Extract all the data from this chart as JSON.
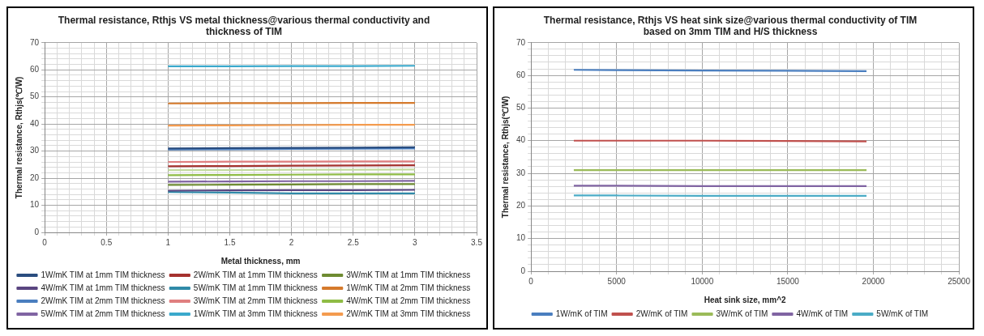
{
  "chart_data": [
    {
      "type": "line",
      "title": "Thermal resistance, Rthjs VS metal thickness@various thermal conductivity and thickness of TIM",
      "xlabel": "Metal thickness, mm",
      "ylabel": "Thermal resistance, Rthjs(℃/W)",
      "x": [
        1,
        1.5,
        2,
        2.5,
        3
      ],
      "series": [
        {
          "name": "1W/mK TIM at 1mm TIM thickness",
          "color": "#2a4d7f",
          "values": [
            31.0,
            31.1,
            31.2,
            31.3,
            31.4
          ]
        },
        {
          "name": "2W/mK TIM at 1mm TIM thickness",
          "color": "#a5322f",
          "values": [
            24.4,
            24.5,
            24.6,
            24.7,
            24.8
          ]
        },
        {
          "name": "3W/mK TIM at 1mm TIM thickness",
          "color": "#6e8b32",
          "values": [
            17.5,
            17.6,
            17.7,
            17.8,
            17.8
          ]
        },
        {
          "name": "4W/mK TIM at 1mm TIM thickness",
          "color": "#5a4580",
          "values": [
            15.4,
            15.5,
            15.6,
            15.6,
            15.7
          ]
        },
        {
          "name": "5W/mK TIM at 1mm TIM thickness",
          "color": "#2f8aa8",
          "values": [
            14.9,
            14.7,
            14.4,
            14.4,
            14.4
          ]
        },
        {
          "name": "1W/mK TIM at 2mm TIM thickness",
          "color": "#d57a2c",
          "values": [
            47.6,
            47.7,
            47.7,
            47.8,
            47.8
          ]
        },
        {
          "name": "2W/mK TIM at 2mm TIM thickness",
          "color": "#4a7ebf",
          "values": [
            30.6,
            30.7,
            30.8,
            30.9,
            31.0
          ]
        },
        {
          "name": "3W/mK TIM at 2mm TIM thickness",
          "color": "#e07f80",
          "values": [
            26.0,
            26.1,
            26.1,
            26.2,
            26.2
          ]
        },
        {
          "name": "4W/mK TIM at 2mm TIM thickness",
          "color": "#8fbc45",
          "values": [
            21.1,
            21.2,
            21.3,
            21.4,
            21.4
          ]
        },
        {
          "name": "5W/mK TIM at 2mm TIM thickness",
          "color": "#8064a2",
          "values": [
            18.7,
            18.8,
            18.9,
            18.9,
            19.0
          ]
        },
        {
          "name": "1W/mK TIM at 3mm TIM thickness",
          "color": "#3aa9cc",
          "values": [
            61.3,
            61.3,
            61.4,
            61.4,
            61.5
          ]
        },
        {
          "name": "2W/mK TIM at 3mm TIM thickness",
          "color": "#f49b4e",
          "values": [
            39.4,
            39.5,
            39.6,
            39.7,
            39.7
          ]
        },
        {
          "color": "#c4dba0",
          "values": [
            23.0,
            23.0,
            23.1,
            23.1,
            23.2
          ]
        }
      ],
      "xlim": [
        0,
        3.5
      ],
      "ylim": [
        0,
        70
      ],
      "xticks": [
        0,
        {
          "value": 0.1,
          "label": null
        },
        {
          "value": 0.2,
          "label": null
        },
        {
          "value": 0.3,
          "label": null
        },
        {
          "value": 0.4,
          "label": null
        },
        0.5,
        {
          "value": 0.6,
          "label": null
        },
        {
          "value": 0.7,
          "label": null
        },
        {
          "value": 0.8,
          "label": null
        },
        {
          "value": 0.9,
          "label": null
        },
        1,
        {
          "value": 1.1,
          "label": null
        },
        {
          "value": 1.2,
          "label": null
        },
        {
          "value": 1.3,
          "label": null
        },
        {
          "value": 1.4,
          "label": null
        },
        1.5,
        {
          "value": 1.6,
          "label": null
        },
        {
          "value": 1.7,
          "label": null
        },
        {
          "value": 1.8,
          "label": null
        },
        {
          "value": 1.9,
          "label": null
        },
        2,
        {
          "value": 2.1,
          "label": null
        },
        {
          "value": 2.2,
          "label": null
        },
        {
          "value": 2.3,
          "label": null
        },
        {
          "value": 2.4,
          "label": null
        },
        2.5,
        {
          "value": 2.6,
          "label": null
        },
        {
          "value": 2.7,
          "label": null
        },
        {
          "value": 2.8,
          "label": null
        },
        {
          "value": 2.9,
          "label": null
        },
        3,
        {
          "value": 3.1,
          "label": null
        },
        {
          "value": 3.2,
          "label": null
        },
        {
          "value": 3.3,
          "label": null
        },
        {
          "value": 3.4,
          "label": null
        },
        3.5
      ],
      "yticks": [
        0,
        {
          "value": 2,
          "label": null
        },
        {
          "value": 4,
          "label": null
        },
        {
          "value": 6,
          "label": null
        },
        {
          "value": 8,
          "label": null
        },
        10,
        {
          "value": 12,
          "label": null
        },
        {
          "value": 14,
          "label": null
        },
        {
          "value": 16,
          "label": null
        },
        {
          "value": 18,
          "label": null
        },
        20,
        {
          "value": 22,
          "label": null
        },
        {
          "value": 24,
          "label": null
        },
        {
          "value": 26,
          "label": null
        },
        {
          "value": 28,
          "label": null
        },
        30,
        {
          "value": 32,
          "label": null
        },
        {
          "value": 34,
          "label": null
        },
        {
          "value": 36,
          "label": null
        },
        {
          "value": 38,
          "label": null
        },
        40,
        {
          "value": 42,
          "label": null
        },
        {
          "value": 44,
          "label": null
        },
        {
          "value": 46,
          "label": null
        },
        {
          "value": 48,
          "label": null
        },
        50,
        {
          "value": 52,
          "label": null
        },
        {
          "value": 54,
          "label": null
        },
        {
          "value": 56,
          "label": null
        },
        {
          "value": 58,
          "label": null
        },
        60,
        {
          "value": 62,
          "label": null
        },
        {
          "value": 64,
          "label": null
        },
        {
          "value": 66,
          "label": null
        },
        {
          "value": 68,
          "label": null
        },
        70
      ],
      "grid": true,
      "legend": "bottom",
      "marker": "none",
      "line_style": "solid"
    },
    {
      "type": "line",
      "title": "Thermal resistance, Rthjs VS heat sink size@various thermal conductivity of TIM",
      "subtitle": "based on 3mm TIM and H/S thickness",
      "xlabel": "Heat sink size, mm^2",
      "ylabel": "Thermal resistance, Rthjs(℃/W)",
      "x": [
        2500,
        5000,
        10000,
        15000,
        19600
      ],
      "series": [
        {
          "name": "1W/mK of TIM",
          "color": "#4a7ebf",
          "values": [
            61.7,
            61.6,
            61.5,
            61.4,
            61.3
          ]
        },
        {
          "name": "2W/mK of TIM",
          "color": "#c0504d",
          "values": [
            40.0,
            40.0,
            40.0,
            39.9,
            39.8
          ]
        },
        {
          "name": "3W/mK of TIM",
          "color": "#9bbb59",
          "values": [
            31.0,
            31.0,
            31.0,
            31.0,
            31.0
          ]
        },
        {
          "name": "4W/mK of TIM",
          "color": "#8064a2",
          "values": [
            26.2,
            26.2,
            26.1,
            26.1,
            26.1
          ]
        },
        {
          "name": "5W/mK of TIM",
          "color": "#4bacc6",
          "values": [
            23.2,
            23.2,
            23.1,
            23.1,
            23.1
          ]
        }
      ],
      "xlim": [
        0,
        25000
      ],
      "ylim": [
        0,
        70
      ],
      "xticks": [
        0,
        {
          "value": 1000,
          "label": null
        },
        {
          "value": 2000,
          "label": null
        },
        {
          "value": 3000,
          "label": null
        },
        {
          "value": 4000,
          "label": null
        },
        5000,
        {
          "value": 6000,
          "label": null
        },
        {
          "value": 7000,
          "label": null
        },
        {
          "value": 8000,
          "label": null
        },
        {
          "value": 9000,
          "label": null
        },
        10000,
        {
          "value": 11000,
          "label": null
        },
        {
          "value": 12000,
          "label": null
        },
        {
          "value": 13000,
          "label": null
        },
        {
          "value": 14000,
          "label": null
        },
        15000,
        {
          "value": 16000,
          "label": null
        },
        {
          "value": 17000,
          "label": null
        },
        {
          "value": 18000,
          "label": null
        },
        {
          "value": 19000,
          "label": null
        },
        20000,
        {
          "value": 21000,
          "label": null
        },
        {
          "value": 22000,
          "label": null
        },
        {
          "value": 23000,
          "label": null
        },
        {
          "value": 24000,
          "label": null
        },
        25000
      ],
      "yticks": [
        0,
        {
          "value": 2,
          "label": null
        },
        {
          "value": 4,
          "label": null
        },
        {
          "value": 6,
          "label": null
        },
        {
          "value": 8,
          "label": null
        },
        10,
        {
          "value": 12,
          "label": null
        },
        {
          "value": 14,
          "label": null
        },
        {
          "value": 16,
          "label": null
        },
        {
          "value": 18,
          "label": null
        },
        20,
        {
          "value": 22,
          "label": null
        },
        {
          "value": 24,
          "label": null
        },
        {
          "value": 26,
          "label": null
        },
        {
          "value": 28,
          "label": null
        },
        30,
        {
          "value": 32,
          "label": null
        },
        {
          "value": 34,
          "label": null
        },
        {
          "value": 36,
          "label": null
        },
        {
          "value": 38,
          "label": null
        },
        40,
        {
          "value": 42,
          "label": null
        },
        {
          "value": 44,
          "label": null
        },
        {
          "value": 46,
          "label": null
        },
        {
          "value": 48,
          "label": null
        },
        50,
        {
          "value": 52,
          "label": null
        },
        {
          "value": 54,
          "label": null
        },
        {
          "value": 56,
          "label": null
        },
        {
          "value": 58,
          "label": null
        },
        60,
        {
          "value": 62,
          "label": null
        },
        {
          "value": 64,
          "label": null
        },
        {
          "value": 66,
          "label": null
        },
        {
          "value": 68,
          "label": null
        },
        70
      ],
      "grid": true,
      "legend": "bottom",
      "marker": "none",
      "line_style": "solid"
    }
  ]
}
